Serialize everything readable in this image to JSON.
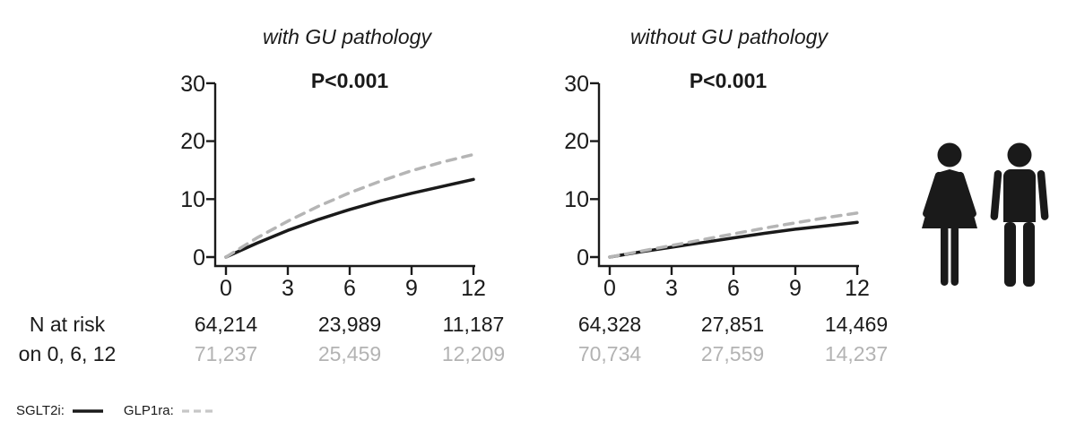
{
  "risk_label": {
    "line1": "N at risk",
    "line2": "on 0, 6, 12"
  },
  "legend": {
    "items": [
      {
        "label": "SGLT2i:",
        "line_style": "solid",
        "color": "#1a1a1a"
      },
      {
        "label": "GLP1ra:",
        "line_style": "dashed",
        "color": "#c7c7c7"
      }
    ]
  },
  "icons": {
    "left": "woman pictogram",
    "right": "man pictogram",
    "color": "#1a1a1a"
  },
  "colors": {
    "text": "#1a1a1a",
    "axis": "#1a1a1a",
    "sglt2i_line": "#1a1a1a",
    "glp1ra_line": "#b5b5b5",
    "gray_text": "#b3b3b3",
    "background": "#ffffff"
  },
  "chart_data": [
    {
      "type": "line",
      "title": "with GU pathology",
      "annotation": "P<0.001",
      "xlabel": "",
      "ylabel": "",
      "xlim": [
        0,
        12
      ],
      "ylim": [
        0,
        30
      ],
      "xticks": [
        0,
        3,
        6,
        9,
        12
      ],
      "yticks": [
        0,
        10,
        20,
        30
      ],
      "grid": false,
      "legend_position": "none",
      "x": [
        0,
        1.5,
        3,
        4.5,
        6,
        7.5,
        9,
        10.5,
        12
      ],
      "series": [
        {
          "name": "SGLT2i",
          "style": "solid",
          "color": "#1a1a1a",
          "values": [
            0,
            2.4,
            4.6,
            6.5,
            8.2,
            9.7,
            11.0,
            12.2,
            13.4
          ]
        },
        {
          "name": "GLP1ra",
          "style": "dashed",
          "color": "#b5b5b5",
          "values": [
            0,
            3.3,
            6.2,
            8.8,
            11.1,
            13.1,
            14.9,
            16.4,
            17.7
          ]
        }
      ],
      "n_at_risk": {
        "times": [
          0,
          6,
          12
        ],
        "rows": [
          {
            "name": "SGLT2i",
            "values": [
              "64,214",
              "23,989",
              "11,187"
            ]
          },
          {
            "name": "GLP1ra",
            "values": [
              "71,237",
              "25,459",
              "12,209"
            ]
          }
        ]
      }
    },
    {
      "type": "line",
      "title": "without GU pathology",
      "annotation": "P<0.001",
      "xlabel": "",
      "ylabel": "",
      "xlim": [
        0,
        12
      ],
      "ylim": [
        0,
        30
      ],
      "xticks": [
        0,
        3,
        6,
        9,
        12
      ],
      "yticks": [
        0,
        10,
        20,
        30
      ],
      "grid": false,
      "legend_position": "none",
      "x": [
        0,
        1.5,
        3,
        4.5,
        6,
        7.5,
        9,
        10.5,
        12
      ],
      "series": [
        {
          "name": "SGLT2i",
          "style": "solid",
          "color": "#1a1a1a",
          "values": [
            0,
            0.9,
            1.7,
            2.5,
            3.3,
            4.1,
            4.8,
            5.4,
            6.0
          ]
        },
        {
          "name": "GLP1ra",
          "style": "dashed",
          "color": "#b5b5b5",
          "values": [
            0,
            1.0,
            2.0,
            3.0,
            4.0,
            5.0,
            5.9,
            6.8,
            7.6
          ]
        }
      ],
      "n_at_risk": {
        "times": [
          0,
          6,
          12
        ],
        "rows": [
          {
            "name": "SGLT2i",
            "values": [
              "64,328",
              "27,851",
              "14,469"
            ]
          },
          {
            "name": "GLP1ra",
            "values": [
              "70,734",
              "27,559",
              "14,237"
            ]
          }
        ]
      }
    }
  ]
}
